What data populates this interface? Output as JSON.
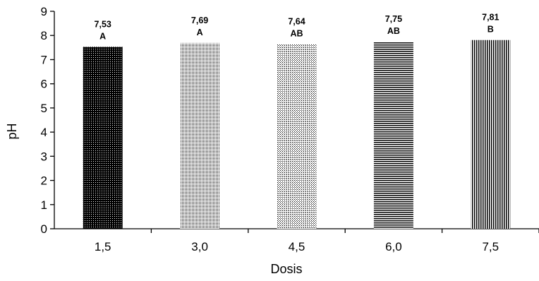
{
  "chart_data": {
    "type": "bar",
    "title": "",
    "xlabel": "Dosis",
    "ylabel": "pH",
    "ylim": [
      0,
      9
    ],
    "yticks": [
      0,
      1,
      2,
      3,
      4,
      5,
      6,
      7,
      8,
      9
    ],
    "categories": [
      "1,5",
      "3,0",
      "4,5",
      "6,0",
      "7,5"
    ],
    "values": [
      7.53,
      7.69,
      7.64,
      7.75,
      7.81
    ],
    "value_labels": [
      "7,53",
      "7,69",
      "7,64",
      "7,75",
      "7,81"
    ],
    "group_letters": [
      "A",
      "A",
      "AB",
      "AB",
      "B"
    ],
    "bar_patterns": [
      "dense-dots",
      "light-dots",
      "stipple",
      "horizontal-lines",
      "vertical-lines"
    ],
    "grid": false,
    "legend": "none",
    "colors": {
      "bar_fill": "#000000",
      "bar_background": "#ffffff",
      "axis": "#000000"
    }
  }
}
